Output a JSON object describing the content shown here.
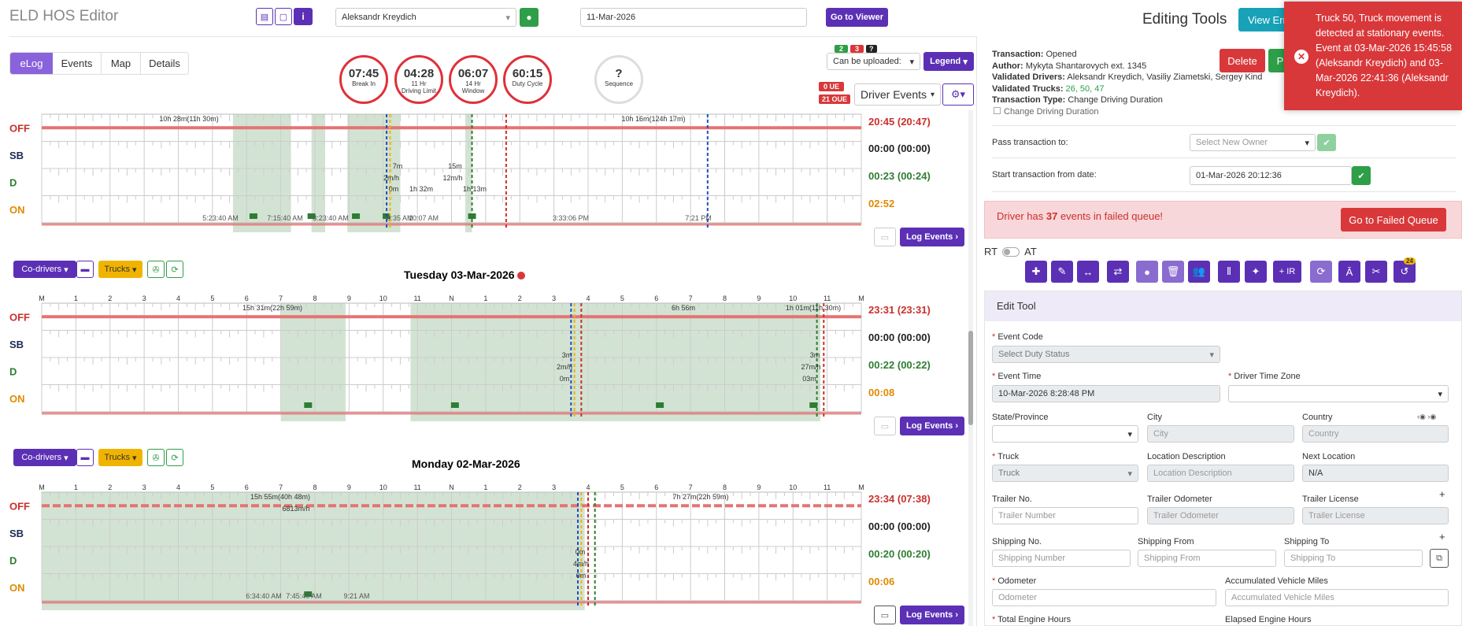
{
  "app": {
    "title": "ELD HOS Editor"
  },
  "header": {
    "driver_select": "Aleksandr Kreydich",
    "date_input": "11-Mar-2026",
    "go_to_viewer": "Go to Viewer"
  },
  "tabs": [
    "eLog",
    "Events",
    "Map",
    "Details"
  ],
  "gauges": [
    {
      "value": "07:45",
      "label1": "Break In",
      "label2": ""
    },
    {
      "value": "04:28",
      "label1": "11 Hr",
      "label2": "Driving Limit"
    },
    {
      "value": "06:07",
      "label1": "14 Hr",
      "label2": "Window"
    },
    {
      "value": "60:15",
      "label1": "Duty Cycle",
      "label2": ""
    },
    {
      "value": "?",
      "label1": "Sequence",
      "label2": ""
    }
  ],
  "badges": {
    "green": "2",
    "red": "3",
    "q": "?",
    "ue": "0 UE",
    "oue": "21 OUE"
  },
  "upload_select": "Can be uploaded:",
  "legend": "Legend",
  "driver_events": "Driver Events",
  "status_rows": [
    "OFF",
    "SB",
    "D",
    "ON"
  ],
  "hour_labels": [
    "M",
    "1",
    "2",
    "3",
    "4",
    "5",
    "6",
    "7",
    "8",
    "9",
    "10",
    "11",
    "N",
    "1",
    "2",
    "3",
    "4",
    "5",
    "6",
    "7",
    "8",
    "9",
    "10",
    "11",
    "M"
  ],
  "days": [
    {
      "title": "",
      "totals": [
        "20:45 (20:47)",
        "00:00 (00:00)",
        "00:23 (00:24)",
        "02:52"
      ],
      "annotations": [
        "10h 28m(11h 30m)",
        "10h 16m(124h 17m)",
        "7m",
        "2m/h",
        "0m",
        "1h 32m",
        "15m",
        "12m/h",
        "1h 13m"
      ],
      "times": [
        "5:23:40 AM",
        "7:15:40 AM",
        "8:23:40 AM",
        "9:35 AM",
        "10:07 AM",
        "3:33:06 PM",
        "7:21 PM"
      ]
    },
    {
      "title": "Tuesday 03-Mar-2026",
      "totals": [
        "23:31 (23:31)",
        "00:00 (00:00)",
        "00:22 (00:22)",
        "00:08"
      ],
      "annotations": [
        "15h 31m(22h 59m)",
        "6h 56m",
        "1h 01m(11h 30m)",
        "3m",
        "2m/h",
        "0m",
        "3m",
        "27m/h",
        "03m"
      ],
      "times": []
    },
    {
      "title": "Monday 02-Mar-2026",
      "totals": [
        "23:34 (07:38)",
        "00:00 (00:00)",
        "00:20 (00:20)",
        "00:06"
      ],
      "annotations": [
        "15h 55m(40h 48m)",
        "6813m/h",
        "7h 27m(22h 59m)",
        "0m",
        "4m/h",
        "0m"
      ],
      "times": [
        "6:34:40 AM",
        "7:45:40 AM",
        "9:21 AM"
      ]
    }
  ],
  "day_controls": {
    "codrivers": "Co-drivers",
    "trucks": "Trucks",
    "log_events": "Log Events"
  },
  "right": {
    "editing_tools": "Editing Tools",
    "view_btn": "View Err",
    "transaction": [
      {
        "k": "Transaction:",
        "v": "Opened"
      },
      {
        "k": "Author:",
        "v": "Mykyta Shantarovych ext. 1345"
      },
      {
        "k": "Validated Drivers:",
        "v": "Aleksandr Kreydich, Vasiliy Ziametski, Sergey Kind"
      },
      {
        "k": "Validated Trucks:",
        "v": "26, 50, 47"
      },
      {
        "k": "Transaction Type:",
        "v": "Change Driving Duration"
      }
    ],
    "checkbox_label": "Change Driving Duration",
    "delete": "Delete",
    "publish": "P",
    "pass_label": "Pass transaction to:",
    "pass_placeholder": "Select New Owner",
    "start_label": "Start transaction from date:",
    "start_value": "01-Mar-2026 20:12:36",
    "failed_msg_pre": "Driver has ",
    "failed_count": "37",
    "failed_msg_post": " events in failed queue!",
    "go_failed": "Go to Failed Queue",
    "rt": "RT",
    "at": "AT",
    "ir": "+ IR",
    "badge24": "24",
    "edit_tool": "Edit Tool",
    "fields": {
      "event_code": "Event Code",
      "event_code_ph": "Select Duty Status",
      "event_time": "Event Time",
      "event_time_val": "10-Mar-2026 8:28:48 PM",
      "tz": "Driver Time Zone",
      "state": "State/Province",
      "city": "City",
      "city_ph": "City",
      "country": "Country",
      "country_ph": "Country",
      "truck": "Truck",
      "truck_ph": "Truck",
      "loc_desc": "Location Description",
      "loc_desc_ph": "Location Description",
      "next_loc": "Next Location",
      "next_loc_val": "N/A",
      "trailer_no": "Trailer No.",
      "trailer_no_ph": "Trailer Number",
      "trailer_odo": "Trailer Odometer",
      "trailer_odo_ph": "Trailer Odometer",
      "trailer_lic": "Trailer License",
      "trailer_lic_ph": "Trailer License",
      "ship_no": "Shipping No.",
      "ship_no_ph": "Shipping Number",
      "ship_from": "Shipping From",
      "ship_from_ph": "Shipping From",
      "ship_to": "Shipping To",
      "ship_to_ph": "Shipping To",
      "odometer": "Odometer",
      "odometer_ph": "Odometer",
      "acc_miles": "Accumulated Vehicle Miles",
      "acc_miles_ph": "Accumulated Vehicle Miles",
      "engine_hours": "Total Engine Hours",
      "elapsed_hours": "Elapsed Engine Hours"
    }
  },
  "toast": {
    "text": "Truck 50, Truck movement is detected at stationary events. Event at 03-Mar-2026 15:45:58 (Aleksandr Kreydich) and 03-Mar-2026 22:41:36 (Aleksandr Kreydich)."
  },
  "colors": {
    "accent": "#5b30b5",
    "off": "#c9302c",
    "driving": "#2e7d32",
    "on": "#e08a00",
    "toast": "#d9383a",
    "shade": "#d3e3d3"
  }
}
